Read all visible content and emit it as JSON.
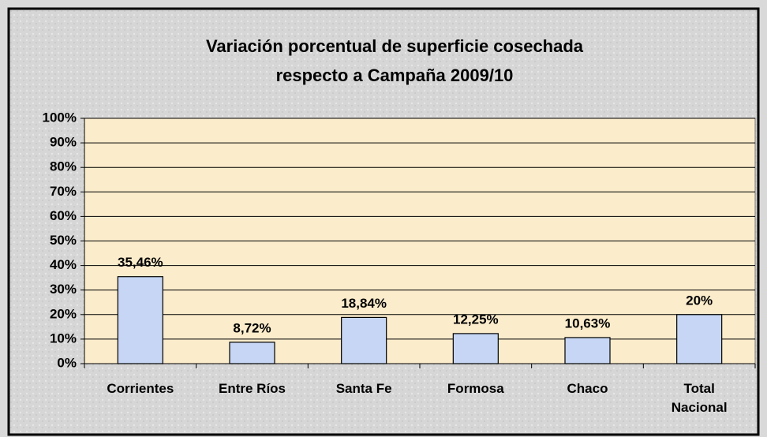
{
  "chart_data": {
    "type": "bar",
    "title": "Variación porcentual de superficie cosechada",
    "subtitle": "respecto a Campaña 2009/10",
    "categories": [
      "Corrientes",
      "Entre Ríos",
      "Santa Fe",
      "Formosa",
      "Chaco",
      "Total Nacional"
    ],
    "values": [
      35.46,
      8.72,
      18.84,
      12.25,
      10.63,
      20
    ],
    "value_labels": [
      "35,46%",
      "8,72%",
      "18,84%",
      "12,25%",
      "10,63%",
      "20%"
    ],
    "color": "#c6d6f4",
    "ylim": [
      0,
      100
    ],
    "yticks": [
      {
        "value": 0,
        "label": "0%"
      },
      {
        "value": 10,
        "label": "10%"
      },
      {
        "value": 20,
        "label": "20%"
      },
      {
        "value": 30,
        "label": "30%"
      },
      {
        "value": 40,
        "label": "40%"
      },
      {
        "value": 50,
        "label": "50%"
      },
      {
        "value": 60,
        "label": "60%"
      },
      {
        "value": 70,
        "label": "70%"
      },
      {
        "value": 80,
        "label": "80%"
      },
      {
        "value": 90,
        "label": "90%"
      },
      {
        "value": 100,
        "label": "100%"
      }
    ],
    "grid": true
  }
}
